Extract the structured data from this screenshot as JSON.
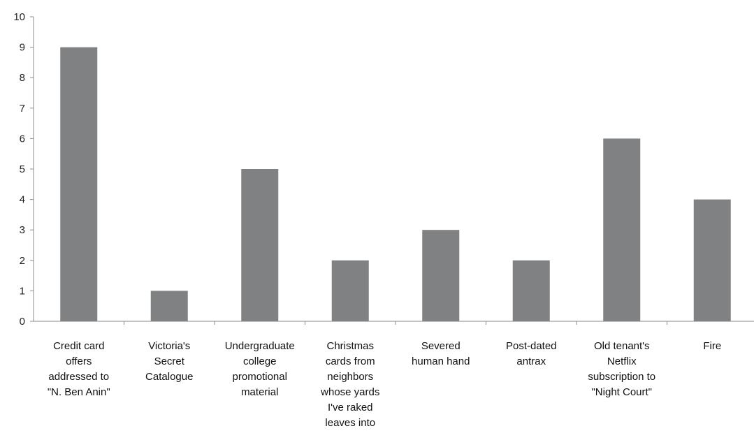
{
  "chart_data": {
    "type": "bar",
    "title": "",
    "xlabel": "",
    "ylabel": "",
    "ylim": [
      0,
      10
    ],
    "y_ticks": [
      "0",
      "1",
      "2",
      "3",
      "4",
      "5",
      "6",
      "7",
      "8",
      "9",
      "10"
    ],
    "grid": false,
    "legend": "none",
    "bar_color": "#7f8182",
    "categories": [
      "Credit card offers addressed to \"N. Ben Anin\"",
      "Victoria's Secret Catalogue",
      "Undergraduate college promotional material",
      "Christmas cards from neighbors whose yards I've raked leaves into",
      "Severed human hand",
      "Post-dated antrax",
      "Old tenant's Netflix subscription to \"Night Court\"",
      "Fire"
    ],
    "category_lines": [
      [
        "Credit card",
        "offers",
        "addressed to",
        "\"N. Ben Anin\""
      ],
      [
        "Victoria's",
        "Secret",
        "Catalogue"
      ],
      [
        "Undergraduate",
        "college",
        "promotional",
        "material"
      ],
      [
        "Christmas",
        "cards from",
        "neighbors",
        "whose yards",
        "I've raked",
        "leaves into"
      ],
      [
        "Severed",
        "human hand"
      ],
      [
        "Post-dated",
        "antrax"
      ],
      [
        "Old tenant's",
        "Netflix",
        "subscription to",
        "\"Night Court\""
      ],
      [
        "Fire"
      ]
    ],
    "values": [
      9,
      1,
      5,
      2,
      3,
      2,
      6,
      4
    ]
  }
}
